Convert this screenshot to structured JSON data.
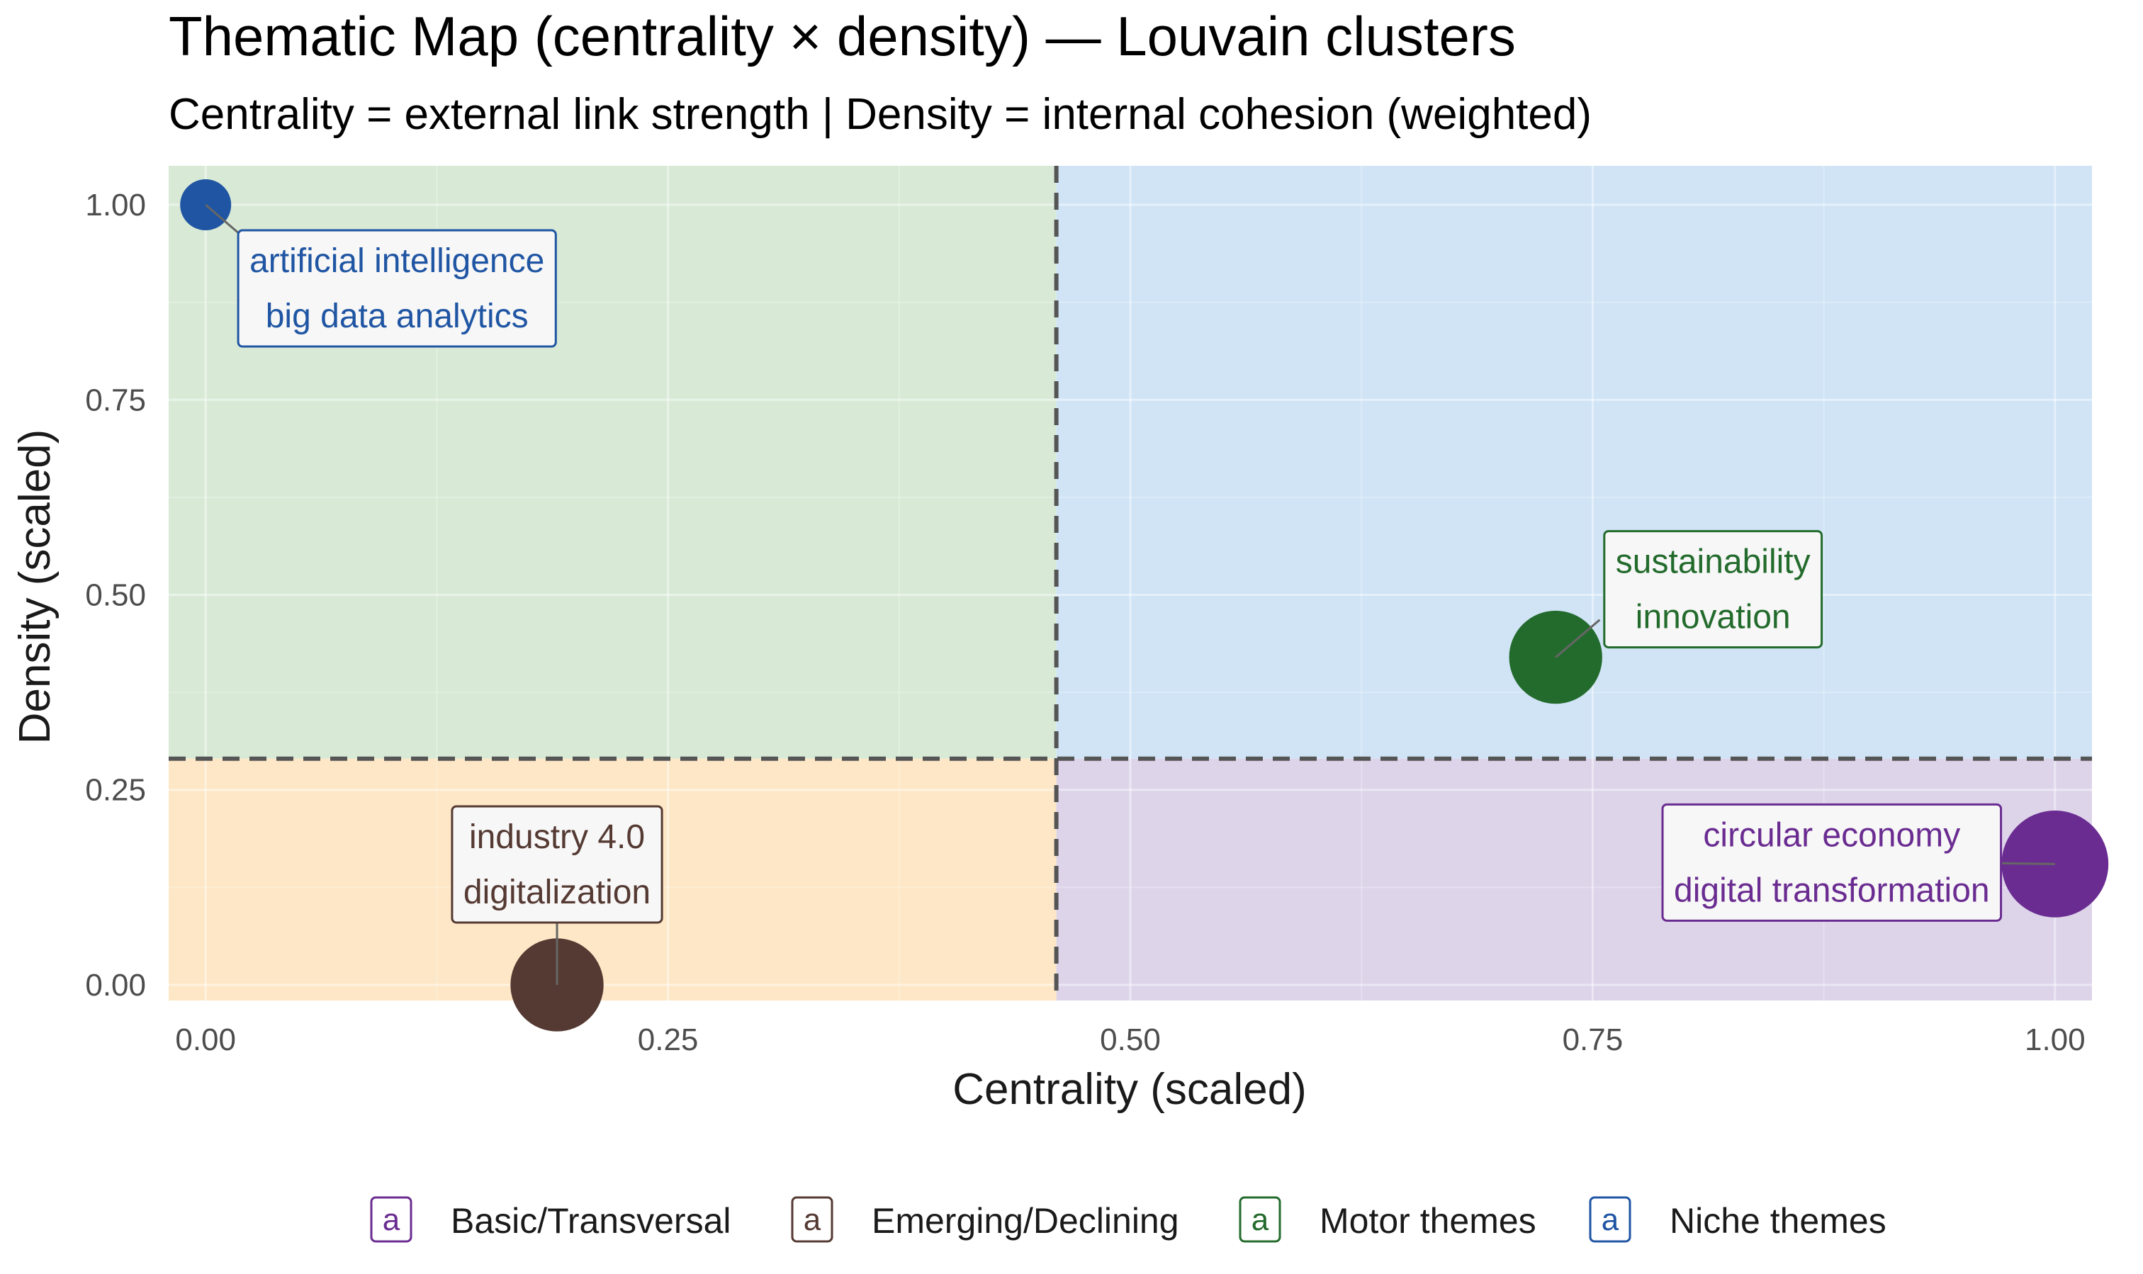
{
  "chart_data": {
    "type": "scatter",
    "title": "Thematic Map (centrality × density) — Louvain clusters",
    "subtitle": "Centrality = external link strength | Density = internal cohesion (weighted)",
    "xlabel": "Centrality (scaled)",
    "ylabel": "Density (scaled)",
    "xlim": [
      -0.02,
      1.02
    ],
    "ylim": [
      -0.02,
      1.05
    ],
    "x_ticks": [
      {
        "value": 0.0,
        "label": "0.00"
      },
      {
        "value": 0.25,
        "label": "0.25"
      },
      {
        "value": 0.5,
        "label": "0.50"
      },
      {
        "value": 0.75,
        "label": "0.75"
      },
      {
        "value": 1.0,
        "label": "1.00"
      }
    ],
    "y_ticks": [
      {
        "value": 0.0,
        "label": "0.00"
      },
      {
        "value": 0.25,
        "label": "0.25"
      },
      {
        "value": 0.5,
        "label": "0.50"
      },
      {
        "value": 0.75,
        "label": "0.75"
      },
      {
        "value": 1.0,
        "label": "1.00"
      }
    ],
    "grid": true,
    "centrality_threshold": 0.46,
    "density_threshold": 0.29,
    "quadrants": [
      {
        "name": "top-left",
        "color": "#d8ead6"
      },
      {
        "name": "top-right",
        "color": "#d0e4f6"
      },
      {
        "name": "bottom-left",
        "color": "#fde7c6"
      },
      {
        "name": "bottom-right",
        "color": "#ddd4ea"
      }
    ],
    "legend_position": "bottom",
    "legend": [
      {
        "key": "a",
        "label": "Basic/Transversal",
        "color": "#6a2c91"
      },
      {
        "key": "a",
        "label": "Emerging/Declining",
        "color": "#553a33"
      },
      {
        "key": "a",
        "label": "Motor themes",
        "color": "#236b2c"
      },
      {
        "key": "a",
        "label": "Niche themes",
        "color": "#1f55a3"
      }
    ],
    "points": [
      {
        "x": 0.0,
        "y": 1.0,
        "size": 1.0,
        "theme": "Niche themes",
        "color": "#1f55a3",
        "lines": [
          "artificial intelligence",
          "big data analytics"
        ]
      },
      {
        "x": 0.73,
        "y": 0.42,
        "size": 2.2,
        "theme": "Motor themes",
        "color": "#236b2c",
        "lines": [
          "sustainability",
          "innovation"
        ]
      },
      {
        "x": 0.19,
        "y": 0.0,
        "size": 2.2,
        "theme": "Emerging/Declining",
        "color": "#553a33",
        "lines": [
          "industry 4.0",
          "digitalization"
        ]
      },
      {
        "x": 1.0,
        "y": 0.155,
        "size": 2.9,
        "theme": "Basic/Transversal",
        "color": "#6a2c91",
        "lines": [
          "circular economy",
          "digital transformation"
        ]
      }
    ]
  }
}
